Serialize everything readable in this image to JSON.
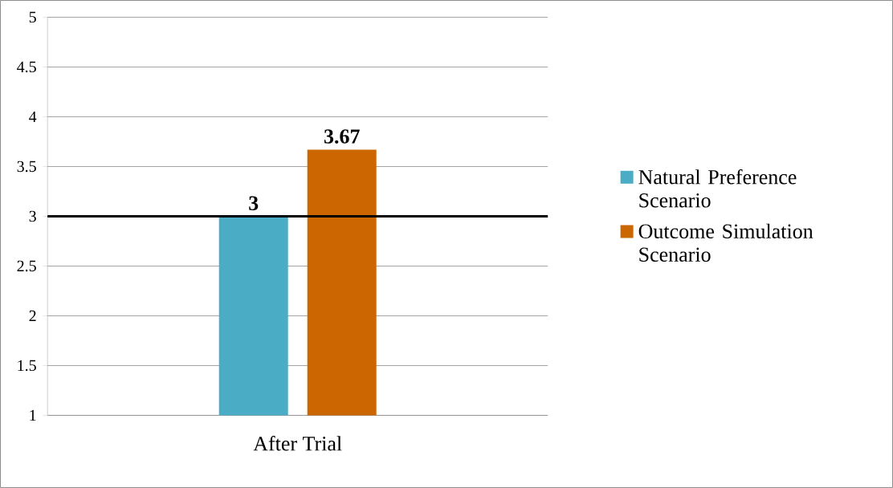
{
  "chart_data": {
    "type": "bar",
    "categories": [
      "After Trial"
    ],
    "series": [
      {
        "name": "Natural Preference Scenario",
        "color": "#4bacc6",
        "values": [
          3
        ]
      },
      {
        "name": "Outcome Simulation Scenario",
        "color": "#cc6600",
        "values": [
          3.67
        ]
      }
    ],
    "ylim": [
      1,
      5
    ],
    "yticks": [
      1,
      1.5,
      2,
      2.5,
      3,
      3.5,
      4,
      4.5,
      5
    ],
    "grid": "y",
    "legend": "right",
    "data_labels": true,
    "ref_lines": [
      {
        "axis": "y",
        "value": 3,
        "color": "#000000"
      }
    ]
  }
}
